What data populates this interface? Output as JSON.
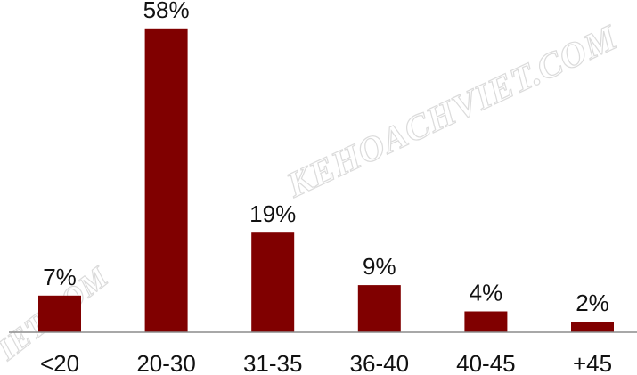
{
  "chart_data": {
    "type": "bar",
    "categories": [
      "<20",
      "20-30",
      "31-35",
      "36-40",
      "40-45",
      "+45"
    ],
    "values": [
      7,
      58,
      19,
      9,
      4,
      2
    ],
    "value_labels": [
      "7%",
      "58%",
      "19%",
      "9%",
      "4%",
      "2%"
    ],
    "ylim": [
      0,
      60
    ],
    "grid": false,
    "bar_color": "#800000",
    "axis_color": "#8c8c8c"
  },
  "watermark": {
    "main": "KEHOACHVIET.COM",
    "fragment": "VIET.COM"
  }
}
